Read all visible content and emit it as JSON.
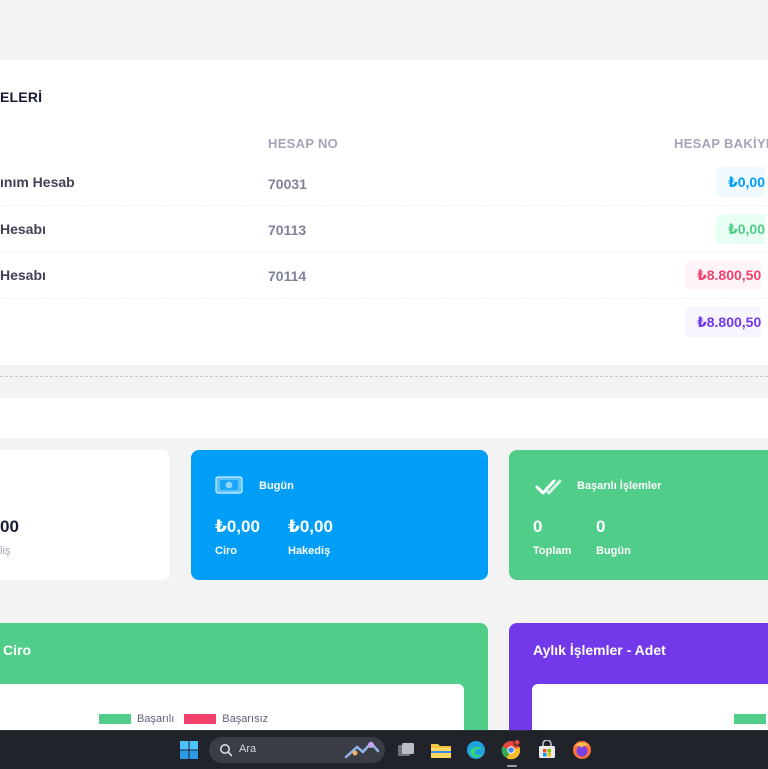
{
  "accounts": {
    "title": "ELERİ",
    "headers": {
      "account_no": "HESAP NO",
      "balance": "HESAP BAKİYE"
    },
    "rows": [
      {
        "name": "ınım Hesab",
        "no": "70031",
        "balance": "₺0,00",
        "variant": "info"
      },
      {
        "name": "Hesabı",
        "no": "70113",
        "balance": "₺0,00",
        "variant": "success"
      },
      {
        "name": "Hesabı",
        "no": "70114",
        "balance": "₺8.800,50",
        "variant": "danger"
      },
      {
        "name": "",
        "no": "",
        "balance": "₺8.800,50",
        "variant": "purple"
      }
    ]
  },
  "stats": {
    "partial": {
      "value": "00",
      "label": "liş"
    },
    "today": {
      "title": "Bugün",
      "revenue_value": "₺0,00",
      "revenue_label": "Ciro",
      "earning_value": "₺0,00",
      "earning_label": "Hakediş",
      "icon": "money-icon"
    },
    "success": {
      "title": "Başarılı İşlemler",
      "total_value": "0",
      "total_label": "Toplam",
      "today_value": "0",
      "today_label": "Bugün",
      "icon": "double-check-icon"
    }
  },
  "charts": {
    "left": {
      "title": "Ciro",
      "legend": [
        "Başarılı",
        "Başarısız"
      ],
      "colors": [
        "#50cd89",
        "#f1416c"
      ]
    },
    "right": {
      "title": "Aylık İşlemler - Adet"
    }
  },
  "taskbar": {
    "search_placeholder": "Ara",
    "apps": [
      "windows-start-icon",
      "task-view-icon",
      "file-explorer-icon",
      "edge-icon",
      "chrome-icon",
      "store-icon",
      "firefox-icon"
    ]
  },
  "colors": {
    "info": "#009ef7",
    "success": "#50cd89",
    "danger": "#f1416c",
    "purple": "#7239ea"
  }
}
